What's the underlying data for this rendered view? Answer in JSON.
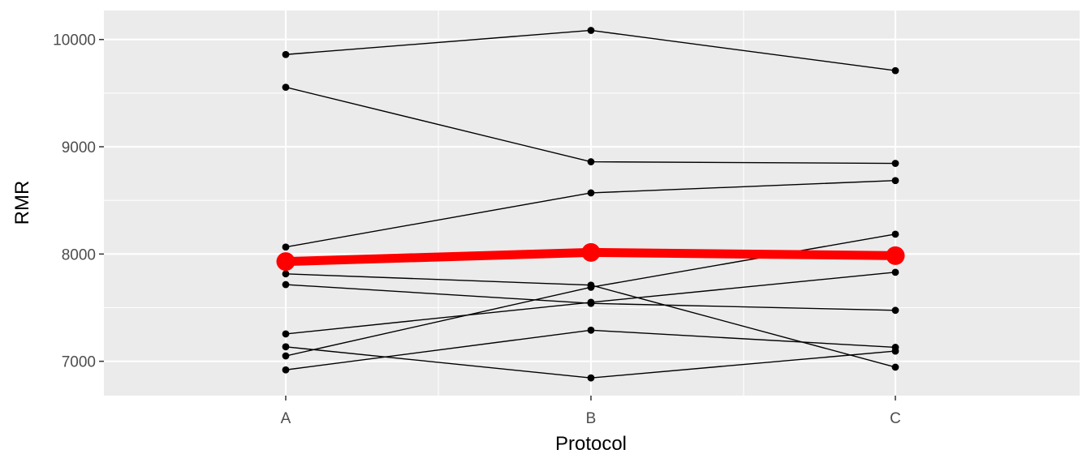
{
  "chart_data": {
    "type": "line",
    "xlabel": "Protocol",
    "ylabel": "RMR",
    "categories": [
      "A",
      "B",
      "C"
    ],
    "y_ticks": [
      7000,
      8000,
      9000,
      10000
    ],
    "ylim": [
      6680,
      10270
    ],
    "grid": true,
    "series": [
      {
        "values": [
          9860,
          10085,
          9710
        ]
      },
      {
        "values": [
          9555,
          8860,
          8845
        ]
      },
      {
        "values": [
          8065,
          8570,
          8685
        ]
      },
      {
        "values": [
          7815,
          7710,
          6945
        ]
      },
      {
        "values": [
          7715,
          7540,
          7475
        ]
      },
      {
        "values": [
          7255,
          7550,
          7830
        ]
      },
      {
        "values": [
          7135,
          6845,
          7095
        ]
      },
      {
        "values": [
          7050,
          7690,
          8185
        ]
      },
      {
        "values": [
          6920,
          7290,
          7130
        ]
      }
    ],
    "mean_series": {
      "values": [
        7930,
        8015,
        7985
      ]
    },
    "colors": {
      "panel": "#ebebeb",
      "grid": "#ffffff",
      "individual": "#000000",
      "mean": "#ff0000"
    }
  }
}
